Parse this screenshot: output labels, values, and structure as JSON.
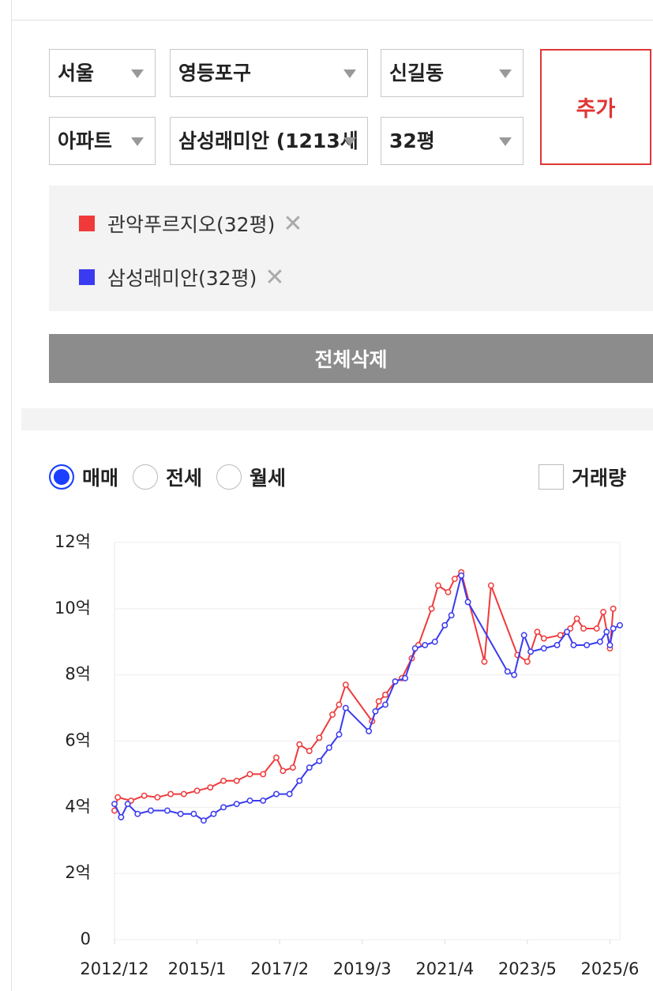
{
  "selectors": {
    "row1": [
      "서울",
      "영등포구",
      "신길동"
    ],
    "row2": [
      "아파트",
      "삼성래미안 (1213세",
      "32평"
    ]
  },
  "add_button": "추가",
  "delete_all_button": "전체삭제",
  "tabs": {
    "options": [
      "매매",
      "전세",
      "월세"
    ],
    "selected": 0
  },
  "volume_checkbox": "거래량",
  "chart_data": {
    "type": "line",
    "series": [
      {
        "name": "관악푸르지오(32평)",
        "color": "#f03a3a",
        "x": [
          "2012/12",
          "2013/1",
          "2013/5",
          "2013/9",
          "2014/1",
          "2014/5",
          "2014/9",
          "2015/1",
          "2015/5",
          "2015/9",
          "2016/1",
          "2016/5",
          "2016/9",
          "2017/1",
          "2017/3",
          "2017/6",
          "2017/8",
          "2017/11",
          "2018/2",
          "2018/6",
          "2018/8",
          "2018/10",
          "2019/6",
          "2019/8",
          "2019/10",
          "2020/1",
          "2020/3",
          "2020/6",
          "2020/8",
          "2020/12",
          "2021/2",
          "2021/5",
          "2021/7",
          "2021/9",
          "2022/4",
          "2022/6",
          "2023/2",
          "2023/5",
          "2023/8",
          "2023/10",
          "2024/3",
          "2024/6",
          "2024/8",
          "2024/10",
          "2025/2",
          "2025/4",
          "2025/6",
          "2025/7"
        ],
        "values": [
          3.9,
          4.3,
          4.2,
          4.35,
          4.3,
          4.4,
          4.4,
          4.5,
          4.6,
          4.8,
          4.8,
          5.0,
          5.0,
          5.5,
          5.1,
          5.2,
          5.9,
          5.7,
          6.1,
          6.8,
          7.1,
          7.7,
          6.6,
          7.2,
          7.4,
          7.8,
          7.9,
          8.5,
          8.9,
          10.0,
          10.7,
          10.5,
          10.9,
          11.1,
          8.4,
          10.7,
          8.6,
          8.4,
          9.3,
          9.1,
          9.2,
          9.4,
          9.7,
          9.4,
          9.4,
          9.9,
          8.8,
          10.0
        ]
      },
      {
        "name": "삼성래미안(32평)",
        "color": "#3a3af0",
        "x": [
          "2012/12",
          "2013/2",
          "2013/4",
          "2013/7",
          "2013/11",
          "2014/4",
          "2014/8",
          "2014/12",
          "2015/3",
          "2015/6",
          "2015/9",
          "2016/1",
          "2016/5",
          "2016/9",
          "2017/1",
          "2017/5",
          "2017/8",
          "2017/11",
          "2018/2",
          "2018/5",
          "2018/8",
          "2018/10",
          "2019/5",
          "2019/7",
          "2019/10",
          "2020/1",
          "2020/4",
          "2020/7",
          "2020/10",
          "2021/1",
          "2021/4",
          "2021/6",
          "2021/9",
          "2021/11",
          "2022/11",
          "2023/1",
          "2023/4",
          "2023/6",
          "2023/10",
          "2024/2",
          "2024/5",
          "2024/7",
          "2024/11",
          "2025/3",
          "2025/5",
          "2025/6",
          "2025/7",
          "2025/9"
        ],
        "values": [
          4.1,
          3.7,
          4.1,
          3.8,
          3.9,
          3.9,
          3.8,
          3.8,
          3.6,
          3.8,
          4.0,
          4.1,
          4.2,
          4.2,
          4.4,
          4.4,
          4.8,
          5.2,
          5.4,
          5.8,
          6.2,
          7.0,
          6.3,
          6.9,
          7.1,
          7.8,
          7.9,
          8.8,
          8.9,
          9.0,
          9.5,
          9.8,
          11.0,
          10.2,
          8.1,
          8.0,
          9.2,
          8.7,
          8.8,
          8.9,
          9.3,
          8.9,
          8.9,
          9.0,
          9.3,
          8.9,
          9.4,
          9.5
        ]
      }
    ],
    "xlim": [
      "2012/12",
      "2025/9"
    ],
    "xticks": [
      "2012/12",
      "2015/1",
      "2017/2",
      "2019/3",
      "2021/4",
      "2023/5",
      "2025/6"
    ],
    "ylim": [
      0,
      12
    ],
    "yticks": [
      0,
      {
        "value": 2,
        "label": "2억"
      },
      {
        "value": 4,
        "label": "4억"
      },
      {
        "value": 6,
        "label": "6억"
      },
      {
        "value": 8,
        "label": "8억"
      },
      {
        "value": 10,
        "label": "10억"
      },
      {
        "value": 12,
        "label": "12억"
      }
    ],
    "grid": true
  }
}
